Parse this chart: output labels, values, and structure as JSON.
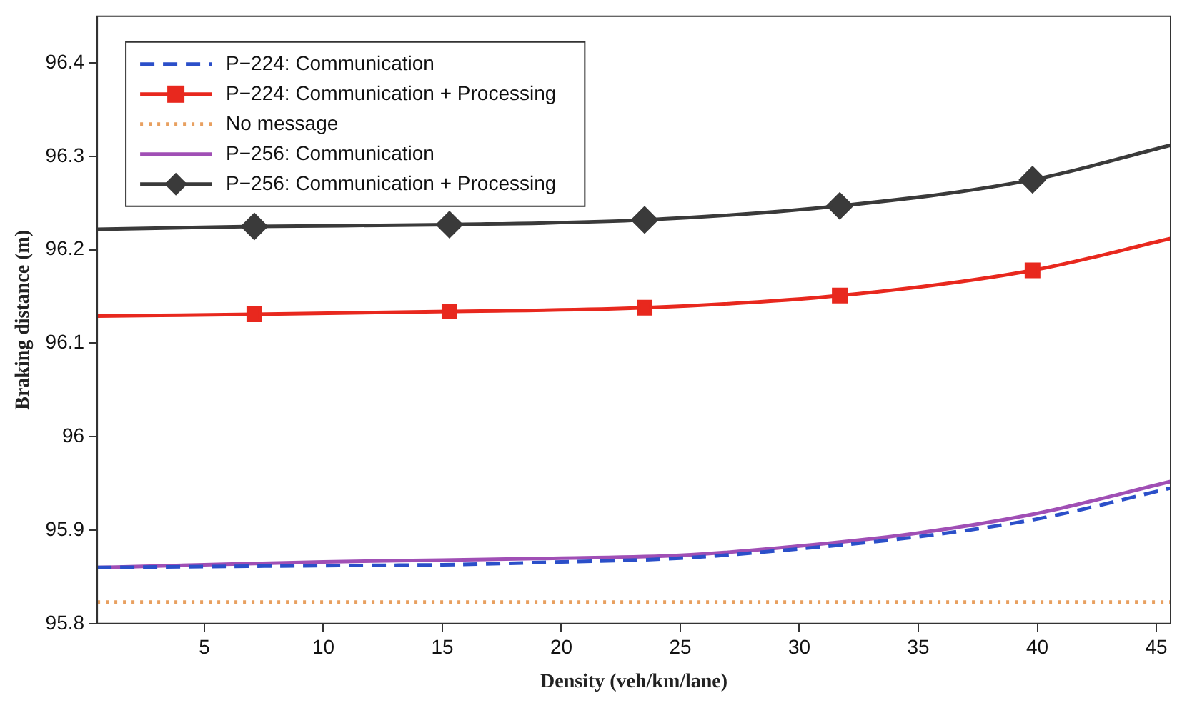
{
  "chart_data": {
    "type": "line",
    "xlabel": "Density (veh/km/lane)",
    "ylabel": "Braking distance (m)",
    "xlim": [
      0.5,
      45.6
    ],
    "xticks": [
      5,
      10,
      15,
      20,
      25,
      30,
      35,
      40,
      45
    ],
    "ylim": [
      95.8,
      96.45
    ],
    "yticks": [
      95.8,
      95.9,
      96,
      96.1,
      96.2,
      96.3,
      96.4
    ],
    "grid": false,
    "legend": "top left",
    "series": [
      {
        "name": "P−224: Communication",
        "color": "#2b4fc9",
        "line_style": "dashed",
        "marker": "none",
        "x": [
          0.5,
          5,
          10,
          15,
          20,
          25,
          30,
          35,
          40,
          45.6
        ],
        "values": [
          95.86,
          95.861,
          95.862,
          95.863,
          95.866,
          95.87,
          95.88,
          95.893,
          95.912,
          95.945
        ]
      },
      {
        "name": "P−224: Communication + Processing",
        "color": "#e8281e",
        "line_style": "solid",
        "marker": "square",
        "x": [
          0.5,
          7.1,
          15.3,
          23.5,
          31.7,
          39.8,
          45.6
        ],
        "values": [
          96.129,
          96.131,
          96.134,
          96.138,
          96.151,
          96.178,
          96.212
        ]
      },
      {
        "name": "No message",
        "color": "#e8a060",
        "line_style": "dotted",
        "marker": "none",
        "x": [
          0.5,
          45.6
        ],
        "values": [
          95.823,
          95.823
        ]
      },
      {
        "name": "P−256: Communication",
        "color": "#a04fb5",
        "line_style": "solid",
        "marker": "none",
        "x": [
          0.5,
          5,
          10,
          15,
          20,
          25,
          30,
          35,
          40,
          45.6
        ],
        "values": [
          95.86,
          95.863,
          95.866,
          95.868,
          95.87,
          95.873,
          95.883,
          95.897,
          95.918,
          95.952
        ]
      },
      {
        "name": "P−256: Communication + Processing",
        "color": "#3a3a3a",
        "line_style": "solid",
        "marker": "diamond",
        "x": [
          0.5,
          7.1,
          15.3,
          23.5,
          31.7,
          39.8,
          45.6
        ],
        "values": [
          96.222,
          96.225,
          96.227,
          96.232,
          96.247,
          96.275,
          96.312
        ]
      }
    ]
  }
}
